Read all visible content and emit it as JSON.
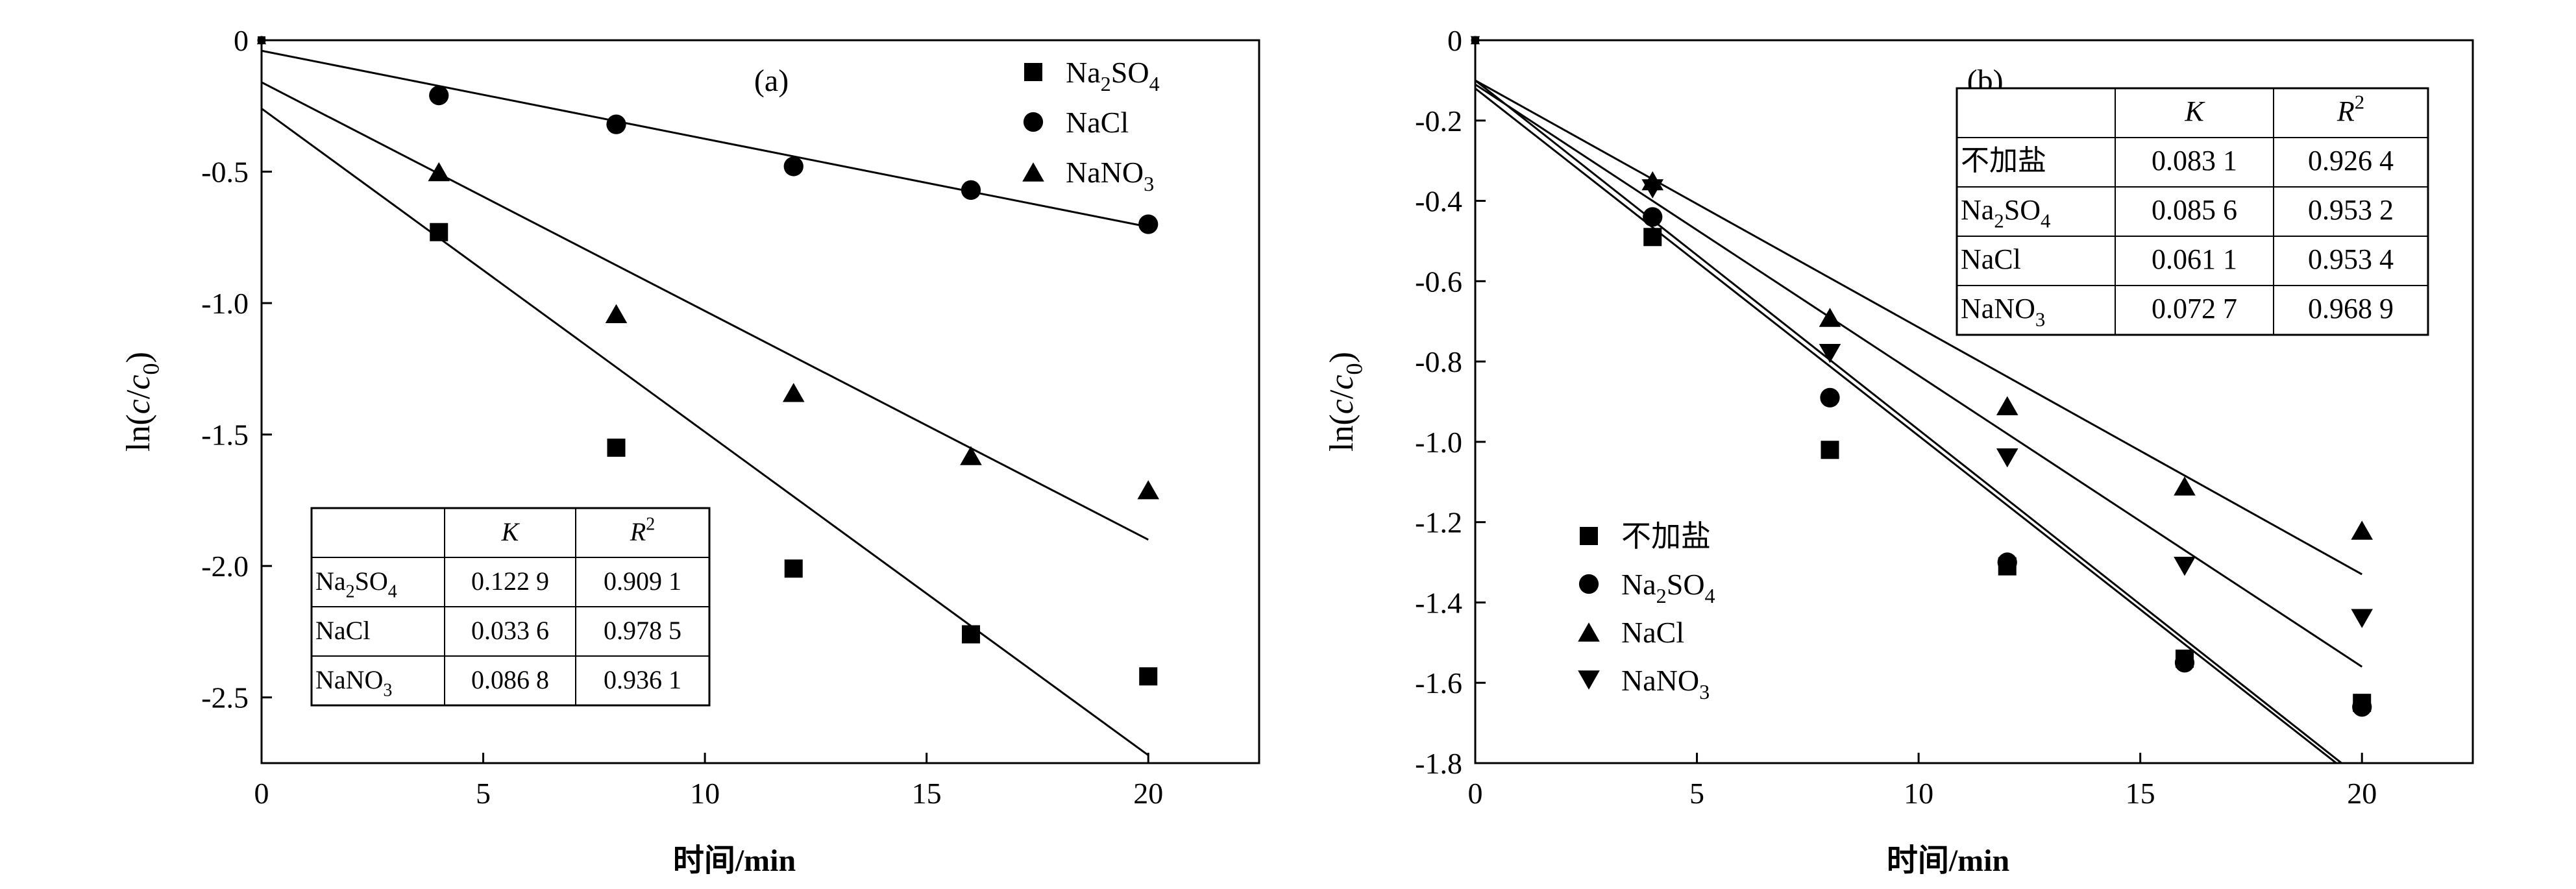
{
  "chart_data": [
    {
      "type": "scatter",
      "panel_label": "(a)",
      "xlabel": "时间/min",
      "ylabel": "ln(c/c0)",
      "xlim": [
        0,
        22.5
      ],
      "ylim": [
        -2.75,
        0
      ],
      "xticks": [
        0,
        5,
        10,
        15,
        20
      ],
      "xtick_labels": [
        "0",
        "5",
        "10",
        "15",
        "20"
      ],
      "yticks": [
        0,
        -0.5,
        -1.0,
        -1.5,
        -2.0,
        -2.5
      ],
      "ytick_labels": [
        "0",
        "-0.5",
        "-1.0",
        "-1.5",
        "-2.0",
        "-2.5"
      ],
      "grid": false,
      "legend_position": "top-right",
      "series": [
        {
          "name": "Na2SO4",
          "marker": "square",
          "x": [
            0,
            4,
            8,
            12,
            16,
            20
          ],
          "y": [
            0,
            -0.73,
            -1.55,
            -2.01,
            -2.26,
            -2.42
          ],
          "fit": {
            "x": [
              0,
              20
            ],
            "y": [
              -0.26,
              -2.72
            ]
          }
        },
        {
          "name": "NaCl",
          "marker": "circle",
          "x": [
            0,
            4,
            8,
            12,
            16,
            20
          ],
          "y": [
            0,
            -0.21,
            -0.32,
            -0.48,
            -0.57,
            -0.7
          ],
          "fit": {
            "x": [
              0,
              20
            ],
            "y": [
              -0.04,
              -0.71
            ]
          }
        },
        {
          "name": "NaNO3",
          "marker": "triangle-up",
          "x": [
            0,
            4,
            8,
            12,
            16,
            20
          ],
          "y": [
            0,
            -0.5,
            -1.04,
            -1.34,
            -1.58,
            -1.71
          ],
          "fit": {
            "x": [
              0,
              20
            ],
            "y": [
              -0.16,
              -1.9
            ]
          }
        }
      ],
      "table": {
        "position": "bottom-left",
        "headers": [
          "",
          "K",
          "R2"
        ],
        "rows": [
          [
            "Na2SO4",
            "0.122 9",
            "0.909 1"
          ],
          [
            "NaCl",
            "0.033 6",
            "0.978 5"
          ],
          [
            "NaNO3",
            "0.086 8",
            "0.936 1"
          ]
        ]
      }
    },
    {
      "type": "scatter",
      "panel_label": "(b)",
      "xlabel": "时间/min",
      "ylabel": "ln(c/c0)",
      "xlim": [
        0,
        22.5
      ],
      "ylim": [
        -1.8,
        0
      ],
      "xticks": [
        0,
        5,
        10,
        15,
        20
      ],
      "xtick_labels": [
        "0",
        "5",
        "10",
        "15",
        "20"
      ],
      "yticks": [
        0,
        -0.2,
        -0.4,
        -0.6,
        -0.8,
        -1.0,
        -1.2,
        -1.4,
        -1.6,
        -1.8
      ],
      "ytick_labels": [
        "0",
        "-0.2",
        "-0.4",
        "-0.6",
        "-0.8",
        "-1.0",
        "-1.2",
        "-1.4",
        "-1.6",
        "-1.8"
      ],
      "grid": false,
      "legend_position": "bottom-left",
      "series": [
        {
          "name": "不加盐",
          "marker": "square",
          "x": [
            0,
            4,
            8,
            12,
            16,
            20
          ],
          "y": [
            0,
            -0.49,
            -1.02,
            -1.31,
            -1.54,
            -1.65
          ],
          "fit": {
            "x": [
              0,
              20
            ],
            "y": [
              -0.12,
              -1.85
            ]
          }
        },
        {
          "name": "Na2SO4",
          "marker": "circle",
          "x": [
            0,
            4,
            8,
            12,
            16,
            20
          ],
          "y": [
            0,
            -0.44,
            -0.89,
            -1.3,
            -1.55,
            -1.66
          ],
          "fit": {
            "x": [
              0,
              20
            ],
            "y": [
              -0.1,
              -1.84
            ]
          }
        },
        {
          "name": "NaCl",
          "marker": "triangle-up",
          "x": [
            0,
            4,
            8,
            12,
            16,
            20
          ],
          "y": [
            0,
            -0.35,
            -0.69,
            -0.91,
            -1.11,
            -1.22
          ],
          "fit": {
            "x": [
              0,
              20
            ],
            "y": [
              -0.1,
              -1.33
            ]
          }
        },
        {
          "name": "NaNO3",
          "marker": "triangle-down",
          "x": [
            0,
            4,
            8,
            12,
            16,
            20
          ],
          "y": [
            0,
            -0.37,
            -0.78,
            -1.04,
            -1.31,
            -1.44
          ],
          "fit": {
            "x": [
              0,
              20
            ],
            "y": [
              -0.11,
              -1.56
            ]
          }
        }
      ],
      "table": {
        "position": "top-right",
        "headers": [
          "",
          "K",
          "R2"
        ],
        "rows": [
          [
            "不加盐",
            "0.083 1",
            "0.926 4"
          ],
          [
            "Na2SO4",
            "0.085 6",
            "0.953 2"
          ],
          [
            "NaCl",
            "0.061 1",
            "0.953 4"
          ],
          [
            "NaNO3",
            "0.072 7",
            "0.968 9"
          ]
        ]
      }
    }
  ]
}
